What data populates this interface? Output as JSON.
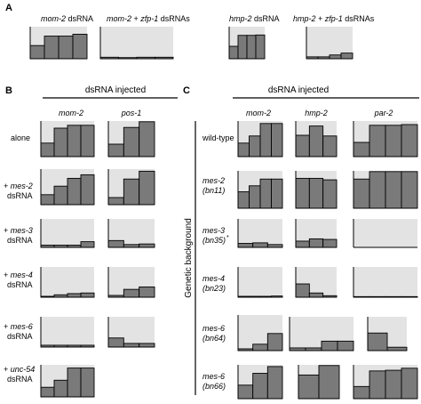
{
  "panels": {
    "A": {
      "letter": "A",
      "labels": [
        {
          "parts": [
            {
              "t": "mom-2",
              "i": true
            },
            {
              "t": " dsRNA",
              "i": false
            }
          ]
        },
        {
          "parts": [
            {
              "t": "mom-2",
              "i": true
            },
            {
              "t": " + ",
              "i": false
            },
            {
              "t": "zfp-1",
              "i": true
            },
            {
              "t": " dsRNAs",
              "i": false
            }
          ]
        },
        {
          "parts": [
            {
              "t": "hmp-2",
              "i": true
            },
            {
              "t": " dsRNA",
              "i": false
            }
          ]
        },
        {
          "parts": [
            {
              "t": "hmp-2",
              "i": true
            },
            {
              "t": " + ",
              "i": false
            },
            {
              "t": "zfp-1",
              "i": true
            },
            {
              "t": " dsRNAs",
              "i": false
            }
          ]
        }
      ]
    },
    "B": {
      "letter": "B",
      "header": "dsRNA injected",
      "columns": [
        "mom-2",
        "pos-1"
      ],
      "rows": [
        {
          "prefix": "",
          "gene": "",
          "suffix": "alone"
        },
        {
          "prefix": "+ ",
          "gene": "mes-2",
          "suffix": "dsRNA"
        },
        {
          "prefix": "+ ",
          "gene": "mes-3",
          "suffix": "dsRNA"
        },
        {
          "prefix": "+ ",
          "gene": "mes-4",
          "suffix": "dsRNA"
        },
        {
          "prefix": "+ ",
          "gene": "mes-6",
          "suffix": "dsRNA"
        },
        {
          "prefix": "+ ",
          "gene": "unc-54",
          "suffix": "dsRNA"
        }
      ]
    },
    "C": {
      "letter": "C",
      "header": "dsRNA injected",
      "axis_label": "Genetic background",
      "columns": [
        "mom-2",
        "hmp-2",
        "par-2"
      ],
      "rows": [
        {
          "line1": "wild-type",
          "line2": "",
          "italic": false,
          "mark": ""
        },
        {
          "line1": "mes-2",
          "line2": "(bn11)",
          "italic": true,
          "mark": ""
        },
        {
          "line1": "mes-3",
          "line2": "(bn35)",
          "italic": true,
          "mark": "*"
        },
        {
          "line1": "mes-4",
          "line2": "(bn23)",
          "italic": true,
          "mark": ""
        },
        {
          "line1": "mes-6",
          "line2": "(bn64)",
          "italic": true,
          "mark": ""
        },
        {
          "line1": "mes-6",
          "line2": "(bn66)",
          "italic": true,
          "mark": ""
        }
      ]
    }
  },
  "chart_data": [
    {
      "type": "bar",
      "panel": "A",
      "condition": "mom-2 dsRNA",
      "values": [
        0.35,
        0.6,
        0.6,
        0.65
      ],
      "ylim": [
        0,
        0.85
      ]
    },
    {
      "type": "bar",
      "panel": "A",
      "condition": "mom-2 + zfp-1 dsRNAs",
      "values": [
        0.04,
        0.03,
        0.04,
        0.04
      ],
      "ylim": [
        0,
        0.85
      ]
    },
    {
      "type": "bar",
      "panel": "A",
      "condition": "hmp-2 dsRNA",
      "values": [
        0.33,
        0.62,
        0.62,
        0.63
      ],
      "ylim": [
        0,
        0.85
      ]
    },
    {
      "type": "bar",
      "panel": "A",
      "condition": "hmp-2 + zfp-1 dsRNAs",
      "values": [
        0.05,
        0.05,
        0.1,
        0.15
      ],
      "ylim": [
        0,
        0.85
      ]
    },
    {
      "type": "bar",
      "panel": "B",
      "row": "alone",
      "column": "mom-2",
      "values": [
        0.38,
        0.8,
        0.88,
        0.88
      ],
      "ylim": [
        0,
        1
      ]
    },
    {
      "type": "bar",
      "panel": "B",
      "row": "alone",
      "column": "pos-1",
      "values": [
        0.35,
        0.82,
        0.98
      ],
      "ylim": [
        0,
        1
      ]
    },
    {
      "type": "bar",
      "panel": "B",
      "row": "+ mes-2 dsRNA",
      "column": "mom-2",
      "values": [
        0.28,
        0.52,
        0.74,
        0.84
      ],
      "ylim": [
        0,
        1
      ]
    },
    {
      "type": "bar",
      "panel": "B",
      "row": "+ mes-2 dsRNA",
      "column": "pos-1",
      "values": [
        0.2,
        0.72,
        0.94
      ],
      "ylim": [
        0,
        1
      ]
    },
    {
      "type": "bar",
      "panel": "B",
      "row": "+ mes-3 dsRNA",
      "column": "mom-2",
      "values": [
        0.08,
        0.08,
        0.08,
        0.2
      ],
      "ylim": [
        0,
        1
      ]
    },
    {
      "type": "bar",
      "panel": "B",
      "row": "+ mes-3 dsRNA",
      "column": "pos-1",
      "values": [
        0.24,
        0.1,
        0.12
      ],
      "ylim": [
        0,
        1
      ]
    },
    {
      "type": "bar",
      "panel": "B",
      "row": "+ mes-4 dsRNA",
      "column": "mom-2",
      "values": [
        0.03,
        0.08,
        0.12,
        0.14
      ],
      "ylim": [
        0,
        1
      ]
    },
    {
      "type": "bar",
      "panel": "B",
      "row": "+ mes-4 dsRNA",
      "column": "pos-1",
      "values": [
        0.06,
        0.26,
        0.34
      ],
      "ylim": [
        0,
        1
      ]
    },
    {
      "type": "bar",
      "panel": "B",
      "row": "+ mes-6 dsRNA",
      "column": "mom-2",
      "values": [
        0.06,
        0.06,
        0.06,
        0.06
      ],
      "ylim": [
        0,
        1
      ]
    },
    {
      "type": "bar",
      "panel": "B",
      "row": "+ mes-6 dsRNA",
      "column": "pos-1",
      "values": [
        0.3,
        0.12,
        0.12
      ],
      "ylim": [
        0,
        1
      ]
    },
    {
      "type": "bar",
      "panel": "B",
      "row": "+ unc-54 dsRNA",
      "column": "mom-2",
      "values": [
        0.3,
        0.52,
        0.9,
        0.9
      ],
      "ylim": [
        0,
        1
      ]
    },
    {
      "type": "bar",
      "panel": "C",
      "row": "wild-type",
      "column": "mom-2",
      "values": [
        0.38,
        0.58,
        0.93,
        0.93
      ],
      "ylim": [
        0,
        1
      ]
    },
    {
      "type": "bar",
      "panel": "C",
      "row": "wild-type",
      "column": "hmp-2",
      "values": [
        0.6,
        0.86,
        0.58
      ],
      "ylim": [
        0,
        1
      ]
    },
    {
      "type": "bar",
      "panel": "C",
      "row": "wild-type",
      "column": "par-2",
      "values": [
        0.4,
        0.88,
        0.88,
        0.9
      ],
      "ylim": [
        0,
        1
      ]
    },
    {
      "type": "bar",
      "panel": "C",
      "row": "mes-2 (bn11)",
      "column": "mom-2",
      "values": [
        0.44,
        0.6,
        0.78,
        0.78
      ],
      "ylim": [
        0,
        1
      ]
    },
    {
      "type": "bar",
      "panel": "C",
      "row": "mes-2 (bn11)",
      "column": "hmp-2",
      "values": [
        0.8,
        0.8,
        0.76
      ],
      "ylim": [
        0,
        1
      ]
    },
    {
      "type": "bar",
      "panel": "C",
      "row": "mes-2 (bn11)",
      "column": "par-2",
      "values": [
        0.78,
        0.98,
        0.98,
        0.98
      ],
      "ylim": [
        0,
        1
      ]
    },
    {
      "type": "bar",
      "panel": "C",
      "row": "mes-3 (bn35)",
      "column": "mom-2",
      "values": [
        0.14,
        0.16,
        0.1
      ],
      "ylim": [
        0,
        1
      ]
    },
    {
      "type": "bar",
      "panel": "C",
      "row": "mes-3 (bn35)",
      "column": "hmp-2",
      "values": [
        0.22,
        0.3,
        0.28
      ],
      "ylim": [
        0,
        1
      ]
    },
    {
      "type": "bar",
      "panel": "C",
      "row": "mes-3 (bn35)",
      "column": "par-2",
      "values": [
        0.0
      ],
      "ylim": [
        0,
        1
      ]
    },
    {
      "type": "bar",
      "panel": "C",
      "row": "mes-4 (bn23)",
      "column": "mom-2",
      "values": [
        0.03,
        0.03,
        0.03,
        0.04
      ],
      "ylim": [
        0,
        1
      ]
    },
    {
      "type": "bar",
      "panel": "C",
      "row": "mes-4 (bn23)",
      "column": "hmp-2",
      "values": [
        0.44,
        0.14,
        0.05
      ],
      "ylim": [
        0,
        1
      ]
    },
    {
      "type": "bar",
      "panel": "C",
      "row": "mes-4 (bn23)",
      "column": "par-2",
      "values": [
        0.02,
        0.02,
        0.02,
        0.02
      ],
      "ylim": [
        0,
        1
      ]
    },
    {
      "type": "bar",
      "panel": "C",
      "row": "mes-6 (bn64)",
      "column": "mom-2",
      "values": [
        0.05,
        0.18,
        0.48
      ],
      "ylim": [
        0,
        1
      ]
    },
    {
      "type": "bar",
      "panel": "C",
      "row": "mes-6 (bn64)",
      "column": "hmp-2",
      "values": [
        0.08,
        0.08,
        0.28,
        0.28
      ],
      "ylim": [
        0,
        1
      ]
    },
    {
      "type": "bar",
      "panel": "C",
      "row": "mes-6 (bn64)",
      "column": "par-2",
      "values": [
        0.52,
        0.1
      ],
      "ylim": [
        0,
        1
      ]
    },
    {
      "type": "bar",
      "panel": "C",
      "row": "mes-6 (bn66)",
      "column": "mom-2",
      "values": [
        0.4,
        0.75,
        0.95
      ],
      "ylim": [
        0,
        1
      ]
    },
    {
      "type": "bar",
      "panel": "C",
      "row": "mes-6 (bn66)",
      "column": "hmp-2",
      "values": [
        0.7,
        0.98
      ],
      "ylim": [
        0,
        1
      ]
    },
    {
      "type": "bar",
      "panel": "C",
      "row": "mes-6 (bn66)",
      "column": "par-2",
      "values": [
        0.36,
        0.82,
        0.84,
        0.9
      ],
      "ylim": [
        0,
        1
      ]
    }
  ]
}
